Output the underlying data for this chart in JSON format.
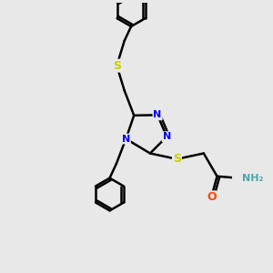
{
  "background_color": "#e8e8e8",
  "atom_color_N": "#0000ff",
  "atom_color_S": "#cccc00",
  "atom_color_O": "#ff4400",
  "atom_color_NH": "#4da6a6",
  "atom_color_C": "#000000",
  "bond_color": "#000000",
  "figsize": [
    3.0,
    3.0
  ],
  "dpi": 100,
  "xlim": [
    0,
    10
  ],
  "ylim": [
    0,
    14
  ]
}
